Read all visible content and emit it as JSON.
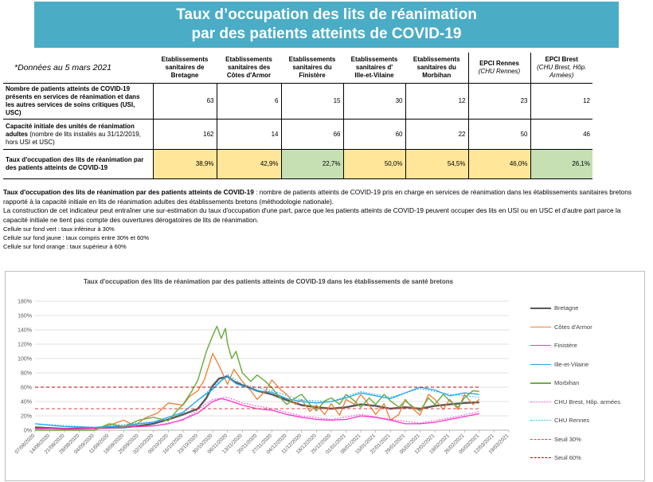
{
  "banner": {
    "line1": "Taux d’occupation des lits de réanimation",
    "line2": "par des patients atteints de COVID-19"
  },
  "table": {
    "note": "*Données au 5 mars 2021",
    "columns": [
      {
        "line1": "Etablissements",
        "line2": "sanitaires de",
        "line3": "Bretagne"
      },
      {
        "line1": "Etablissements",
        "line2": "sanitaires des",
        "line3": "Côtes d'Armor"
      },
      {
        "line1": "Etablissements",
        "line2": "sanitaires du",
        "line3": "Finistère"
      },
      {
        "line1": "Etablissements",
        "line2": "sanitaires d'",
        "line3": "Ille-et-Vilaine"
      },
      {
        "line1": "Etablissements",
        "line2": "sanitaires du",
        "line3": "Morbihan"
      },
      {
        "line1": "EPCI Rennes",
        "line2": "(CHU Rennes)",
        "line3": ""
      },
      {
        "line1": "EPCI Brest",
        "line2": "(CHU Brest, Hôp.",
        "line3": "Armées)"
      }
    ],
    "rows": [
      {
        "label": "Nombre de patients atteints de COVID-19 présents en services de réanimation et dans les autres services de soins critiques (USI, USC)",
        "sub": "",
        "values": [
          "63",
          "6",
          "15",
          "30",
          "12",
          "23",
          "12"
        ]
      },
      {
        "label": "Capacité initiale des unités de réanimation adultes",
        "sub": " (nombre de lits installés au 31/12/2019, hors USI et USC)",
        "values": [
          "162",
          "14",
          "66",
          "60",
          "22",
          "50",
          "46"
        ]
      },
      {
        "label": "Taux d'occupation des lits de réanimation par des patients atteints de COVID-19",
        "sub": "",
        "values": [
          "38,9%",
          "42,9%",
          "22,7%",
          "50,0%",
          "54,5%",
          "46,0%",
          "26,1%"
        ]
      }
    ],
    "rate_colors": [
      "yellow",
      "yellow",
      "green",
      "yellow",
      "yellow",
      "yellow",
      "green"
    ]
  },
  "description": {
    "def_bold": "Taux d'occupation des lits de réanimation par des patients atteints de COVID-19",
    "def_text": " : nombre de patients atteints de COVID-19 pris en charge en services de réanimation dans les établissements sanitaires bretons rapporté à la capacité initiale en lits de réanimation adultes des établissements bretons (méthodologie nationale).",
    "construction": "La construction de cet indicateur peut entraîner une sur-estimation du taux d'occupation d'une part, parce que les patients atteints de COVID-19 peuvent occuper des lits en USI ou en USC et d'autre part parce la capacité initiale ne tient pas compte des ouvertures dérogatoires de lits de réanimation.",
    "green": "Cellule sur fond vert :  taux inférieur à 30%",
    "yellow": "Cellule sur fond jaune : taux compris entre 30% et 60%",
    "orange": "Cellule sur fond orange : taux supérieur à 60%"
  },
  "chart_data": {
    "type": "line",
    "title": "Taux d'occupation des lits de réanimation par des patients atteints de COVID-19 dans les établissements de santé bretons",
    "ylim": [
      0,
      180
    ],
    "yticks": [
      "0%",
      "20%",
      "40%",
      "60%",
      "80%",
      "100%",
      "120%",
      "140%",
      "160%",
      "180%"
    ],
    "x_ticks": [
      "07/08/2020",
      "14/08/2020",
      "21/08/2020",
      "28/08/2020",
      "04/09/2020",
      "11/09/2020",
      "18/09/2020",
      "25/09/2020",
      "02/10/2020",
      "09/10/2020",
      "16/10/2020",
      "23/10/2020",
      "30/10/2020",
      "06/11/2020",
      "13/11/2020",
      "20/11/2020",
      "27/11/2020",
      "04/12/2020",
      "11/12/2020",
      "18/12/2020",
      "25/12/2020",
      "01/01/2021",
      "08/01/2021",
      "15/01/2021",
      "22/01/2021",
      "29/01/2021",
      "05/02/2021",
      "12/02/2021",
      "19/02/2021",
      "26/02/2021",
      "05/03/2021",
      "12/03/2021",
      "19/03/2021"
    ],
    "grid": true,
    "legend_position": "right",
    "series": [
      {
        "name": "Bretagne",
        "color": "#595959",
        "width": 2.4,
        "dash": "",
        "points": [
          [
            0,
            4
          ],
          [
            14,
            2
          ],
          [
            28,
            3
          ],
          [
            42,
            4
          ],
          [
            49,
            6
          ],
          [
            56,
            9
          ],
          [
            63,
            15
          ],
          [
            70,
            22
          ],
          [
            77,
            30
          ],
          [
            81,
            45
          ],
          [
            84,
            62
          ],
          [
            87,
            72
          ],
          [
            91,
            75
          ],
          [
            94,
            68
          ],
          [
            98,
            63
          ],
          [
            105,
            55
          ],
          [
            112,
            50
          ],
          [
            119,
            42
          ],
          [
            126,
            35
          ],
          [
            133,
            32
          ],
          [
            140,
            30
          ],
          [
            147,
            32
          ],
          [
            154,
            36
          ],
          [
            161,
            34
          ],
          [
            168,
            30
          ],
          [
            175,
            32
          ],
          [
            182,
            30
          ],
          [
            189,
            34
          ],
          [
            196,
            36
          ],
          [
            203,
            38
          ],
          [
            210,
            39
          ]
        ]
      },
      {
        "name": "Côtes d'Armor",
        "color": "#ed7d31",
        "width": 1.3,
        "dash": "",
        "points": [
          [
            0,
            0
          ],
          [
            28,
            0
          ],
          [
            35,
            7
          ],
          [
            42,
            14
          ],
          [
            47,
            6
          ],
          [
            52,
            17
          ],
          [
            58,
            24
          ],
          [
            63,
            38
          ],
          [
            70,
            35
          ],
          [
            73,
            47
          ],
          [
            77,
            55
          ],
          [
            80,
            70
          ],
          [
            84,
            107
          ],
          [
            87,
            90
          ],
          [
            91,
            64
          ],
          [
            94,
            85
          ],
          [
            98,
            68
          ],
          [
            102,
            55
          ],
          [
            105,
            43
          ],
          [
            109,
            55
          ],
          [
            112,
            70
          ],
          [
            116,
            57
          ],
          [
            119,
            50
          ],
          [
            123,
            36
          ],
          [
            126,
            43
          ],
          [
            130,
            26
          ],
          [
            133,
            35
          ],
          [
            137,
            22
          ],
          [
            140,
            37
          ],
          [
            144,
            21
          ],
          [
            147,
            43
          ],
          [
            151,
            36
          ],
          [
            154,
            50
          ],
          [
            158,
            35
          ],
          [
            161,
            22
          ],
          [
            165,
            37
          ],
          [
            168,
            14
          ],
          [
            172,
            22
          ],
          [
            175,
            43
          ],
          [
            179,
            29
          ],
          [
            182,
            21
          ],
          [
            186,
            50
          ],
          [
            189,
            43
          ],
          [
            193,
            29
          ],
          [
            196,
            43
          ],
          [
            200,
            29
          ],
          [
            203,
            50
          ],
          [
            207,
            36
          ],
          [
            210,
            43
          ]
        ]
      },
      {
        "name": "Finistère",
        "color": "#ff33cc",
        "width": 1.3,
        "dash": "",
        "points": [
          [
            0,
            2
          ],
          [
            28,
            3
          ],
          [
            42,
            4
          ],
          [
            56,
            6
          ],
          [
            63,
            9
          ],
          [
            70,
            15
          ],
          [
            77,
            24
          ],
          [
            84,
            40
          ],
          [
            88,
            44
          ],
          [
            91,
            42
          ],
          [
            98,
            35
          ],
          [
            105,
            30
          ],
          [
            112,
            28
          ],
          [
            119,
            22
          ],
          [
            126,
            18
          ],
          [
            133,
            15
          ],
          [
            140,
            14
          ],
          [
            147,
            15
          ],
          [
            154,
            20
          ],
          [
            161,
            18
          ],
          [
            168,
            14
          ],
          [
            175,
            9
          ],
          [
            182,
            9
          ],
          [
            189,
            11
          ],
          [
            196,
            15
          ],
          [
            203,
            19
          ],
          [
            210,
            23
          ]
        ]
      },
      {
        "name": "Ille-et-Vilaine",
        "color": "#1ba9f0",
        "width": 1.3,
        "dash": "",
        "points": [
          [
            0,
            9
          ],
          [
            14,
            5
          ],
          [
            28,
            4
          ],
          [
            42,
            6
          ],
          [
            49,
            9
          ],
          [
            56,
            11
          ],
          [
            63,
            18
          ],
          [
            70,
            25
          ],
          [
            77,
            42
          ],
          [
            84,
            57
          ],
          [
            88,
            69
          ],
          [
            91,
            75
          ],
          [
            95,
            65
          ],
          [
            98,
            62
          ],
          [
            105,
            55
          ],
          [
            112,
            53
          ],
          [
            119,
            44
          ],
          [
            126,
            40
          ],
          [
            133,
            38
          ],
          [
            140,
            40
          ],
          [
            147,
            45
          ],
          [
            154,
            52
          ],
          [
            161,
            48
          ],
          [
            168,
            44
          ],
          [
            175,
            52
          ],
          [
            182,
            60
          ],
          [
            189,
            56
          ],
          [
            196,
            48
          ],
          [
            203,
            52
          ],
          [
            210,
            50
          ]
        ]
      },
      {
        "name": "Morbihan",
        "color": "#70ad47",
        "width": 1.5,
        "dash": "",
        "points": [
          [
            0,
            0
          ],
          [
            28,
            0
          ],
          [
            35,
            9
          ],
          [
            42,
            5
          ],
          [
            49,
            14
          ],
          [
            56,
            18
          ],
          [
            63,
            13
          ],
          [
            67,
            27
          ],
          [
            70,
            36
          ],
          [
            74,
            54
          ],
          [
            77,
            70
          ],
          [
            81,
            110
          ],
          [
            84,
            132
          ],
          [
            86,
            145
          ],
          [
            88,
            128
          ],
          [
            90,
            142
          ],
          [
            91,
            121
          ],
          [
            93,
            100
          ],
          [
            95,
            110
          ],
          [
            98,
            80
          ],
          [
            102,
            68
          ],
          [
            105,
            77
          ],
          [
            109,
            68
          ],
          [
            112,
            59
          ],
          [
            116,
            45
          ],
          [
            119,
            36
          ],
          [
            123,
            45
          ],
          [
            126,
            50
          ],
          [
            130,
            36
          ],
          [
            133,
            27
          ],
          [
            137,
            41
          ],
          [
            140,
            45
          ],
          [
            144,
            36
          ],
          [
            147,
            50
          ],
          [
            151,
            41
          ],
          [
            154,
            32
          ],
          [
            158,
            45
          ],
          [
            161,
            36
          ],
          [
            165,
            50
          ],
          [
            168,
            41
          ],
          [
            172,
            32
          ],
          [
            175,
            41
          ],
          [
            179,
            32
          ],
          [
            182,
            27
          ],
          [
            186,
            45
          ],
          [
            189,
            36
          ],
          [
            193,
            50
          ],
          [
            196,
            41
          ],
          [
            200,
            32
          ],
          [
            203,
            45
          ],
          [
            207,
            55
          ],
          [
            210,
            54
          ]
        ]
      },
      {
        "name": "CHU Brest, Hôp. armées",
        "color": "#ff33cc",
        "width": 1.1,
        "dash": "1.5 2",
        "points": [
          [
            0,
            2
          ],
          [
            28,
            3
          ],
          [
            56,
            6
          ],
          [
            70,
            14
          ],
          [
            84,
            43
          ],
          [
            91,
            46
          ],
          [
            98,
            38
          ],
          [
            112,
            30
          ],
          [
            126,
            20
          ],
          [
            140,
            15
          ],
          [
            154,
            22
          ],
          [
            168,
            15
          ],
          [
            182,
            10
          ],
          [
            196,
            17
          ],
          [
            210,
            26
          ]
        ]
      },
      {
        "name": "CHU Rennes",
        "color": "#1ba9f0",
        "width": 1.1,
        "dash": "1.5 2",
        "points": [
          [
            0,
            9
          ],
          [
            28,
            4
          ],
          [
            56,
            12
          ],
          [
            70,
            24
          ],
          [
            84,
            60
          ],
          [
            91,
            78
          ],
          [
            98,
            64
          ],
          [
            112,
            55
          ],
          [
            126,
            42
          ],
          [
            140,
            40
          ],
          [
            154,
            54
          ],
          [
            168,
            46
          ],
          [
            182,
            58
          ],
          [
            196,
            50
          ],
          [
            210,
            46
          ]
        ]
      },
      {
        "name": "Seuil 30%",
        "color": "#e43f3f",
        "width": 1.1,
        "dash": "4 3",
        "points": [
          [
            0,
            30
          ],
          [
            210,
            30
          ]
        ]
      },
      {
        "name": "Seuil 60%",
        "color": "#c00000",
        "width": 1.1,
        "dash": "4 3",
        "points": [
          [
            0,
            60
          ],
          [
            210,
            60
          ]
        ]
      }
    ]
  }
}
